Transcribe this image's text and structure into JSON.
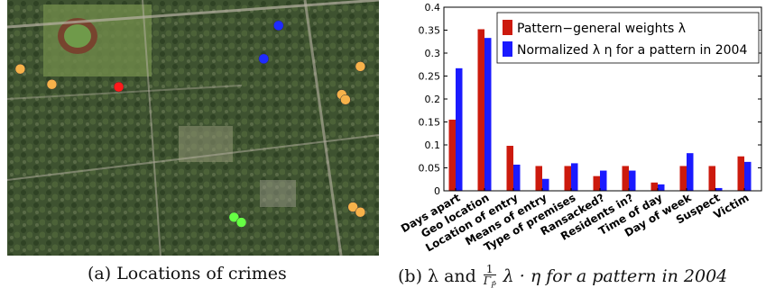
{
  "map": {
    "colors": {
      "orange": "#f7b24a",
      "red": "#ff1a1a",
      "blue": "#1f2bff",
      "green": "#66ff44"
    },
    "points": [
      {
        "color": "orange",
        "x": 0.035,
        "y": 0.27
      },
      {
        "color": "orange",
        "x": 0.12,
        "y": 0.33
      },
      {
        "color": "red",
        "x": 0.3,
        "y": 0.34
      },
      {
        "color": "blue",
        "x": 0.73,
        "y": 0.1
      },
      {
        "color": "blue",
        "x": 0.69,
        "y": 0.23
      },
      {
        "color": "orange",
        "x": 0.95,
        "y": 0.26
      },
      {
        "color": "orange",
        "x": 0.9,
        "y": 0.37
      },
      {
        "color": "orange",
        "x": 0.91,
        "y": 0.39
      },
      {
        "color": "orange",
        "x": 0.93,
        "y": 0.81
      },
      {
        "color": "orange",
        "x": 0.95,
        "y": 0.83
      },
      {
        "color": "green",
        "x": 0.61,
        "y": 0.85
      },
      {
        "color": "green",
        "x": 0.63,
        "y": 0.87
      }
    ]
  },
  "captions": {
    "a": "(a) Locations of crimes",
    "b_prefix": "(b) λ and",
    "b_num": "1",
    "b_den": "Γ",
    "b_den_sub": "P̂",
    "b_suffix": "λ · η for a pattern in 2004"
  },
  "chart_data": {
    "type": "bar",
    "categories": [
      "Days apart",
      "Geo location",
      "Location of entry",
      "Means of entry",
      "Type of premises",
      "Ransacked?",
      "Residents in?",
      "Time of day",
      "Day of week",
      "Suspect",
      "Victim"
    ],
    "series": [
      {
        "name": "Pattern−general weights λ",
        "color": "#cc1a0d",
        "values": [
          0.155,
          0.352,
          0.098,
          0.054,
          0.054,
          0.032,
          0.054,
          0.018,
          0.054,
          0.054,
          0.075
        ]
      },
      {
        "name": "Normalized λ η for a pattern in 2004",
        "color": "#1a1aff",
        "values": [
          0.267,
          0.333,
          0.057,
          0.026,
          0.06,
          0.044,
          0.044,
          0.014,
          0.082,
          0.006,
          0.063
        ]
      }
    ],
    "ylim": [
      0,
      0.4
    ],
    "yticks": [
      "0",
      "0.05",
      "0.1",
      "0.15",
      "0.2",
      "0.25",
      "0.3",
      "0.35",
      "0.4"
    ],
    "legend": "top-right",
    "grid": false
  }
}
